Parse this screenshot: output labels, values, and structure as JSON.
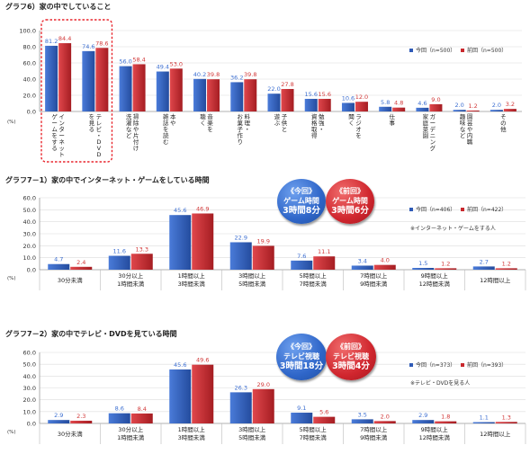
{
  "colors": {
    "current": "#2f5bb7",
    "previous": "#c9282d",
    "label_current": "#3d6fd1",
    "label_previous": "#d23a3a",
    "highlight": "#e8272e"
  },
  "chart_data": [
    {
      "type": "bar",
      "title": "グラフ6）家の中でしていること",
      "ylabel": "(%)",
      "ylim": [
        0,
        100
      ],
      "yticks": [
        "0.0",
        "20.0",
        "40.0",
        "60.0",
        "80.0",
        "100.0"
      ],
      "categories": [
        "インターネット・ゲームをする",
        "テレビ・DVDを見る",
        "掃除や片付け、洗濯など",
        "本や雑誌を読む",
        "音楽を聴く",
        "料理・お菓子作り",
        "子供と遊ぶ",
        "勉強・資格取得",
        "ラジオを聞く",
        "仕事",
        "ガーデニング・家庭菜園",
        "園芸や内職、趣味など",
        "その他"
      ],
      "categories_vertical": [
        "インターネット\nゲームをする",
        "テレビ・DVD\nを見る",
        "掃除や片付け\n洗濯など",
        "本や\n雑誌を読む",
        "音楽を\n聴く",
        "料理・\nお菓子作り",
        "子供と\n遊ぶ",
        "勉強・\n資格取得",
        "ラジオを\n聞く",
        "仕事",
        "ガーデニング\n家庭菜園",
        "園芸や内職\n趣味など",
        "その他"
      ],
      "series": [
        {
          "name": "今回（n=500）",
          "values": [
            81.2,
            74.6,
            56.0,
            49.4,
            40.2,
            36.2,
            22.0,
            15.6,
            10.6,
            5.8,
            4.6,
            2.0,
            2.0
          ]
        },
        {
          "name": "前回（n=500）",
          "values": [
            84.4,
            78.6,
            58.4,
            53.0,
            39.8,
            39.8,
            27.8,
            15.6,
            12.0,
            4.8,
            9.0,
            1.2,
            3.2
          ]
        }
      ],
      "legend": "top-right",
      "highlight_first": 2
    },
    {
      "type": "bar",
      "title": "グラフ7－1）家の中でインターネット・ゲームをしている時間",
      "ylabel": "(%)",
      "ylim": [
        0,
        60
      ],
      "yticks": [
        "0.0",
        "10.0",
        "20.0",
        "30.0",
        "40.0",
        "50.0",
        "60.0"
      ],
      "categories": [
        "30分未満",
        "30分以上\n1時間未満",
        "1時間以上\n3時間未満",
        "3時間以上\n5時間未満",
        "5時間以上\n7時間未満",
        "7時間以上\n9時間未満",
        "9時間以上\n12時間未満",
        "12時間以上"
      ],
      "series": [
        {
          "name": "今回（n=406）",
          "values": [
            4.7,
            11.6,
            45.6,
            22.9,
            7.6,
            3.4,
            1.5,
            2.7
          ]
        },
        {
          "name": "前回（n=422）",
          "values": [
            2.4,
            13.3,
            46.9,
            19.9,
            11.1,
            4.0,
            1.2,
            1.2
          ]
        }
      ],
      "legend": "top-right",
      "note": "※インターネット・ゲームをする人",
      "bubbles": [
        {
          "lines": [
            "《今回》",
            "ゲーム時間"
          ],
          "big": "3時間8分"
        },
        {
          "lines": [
            "《前回》",
            "ゲーム時間"
          ],
          "big": "3時間6分"
        }
      ]
    },
    {
      "type": "bar",
      "title": "グラフ7－2）家の中でテレビ・DVDを見ている時間",
      "ylabel": "(%)",
      "ylim": [
        0,
        60
      ],
      "yticks": [
        "0.0",
        "10.0",
        "20.0",
        "30.0",
        "40.0",
        "50.0",
        "60.0"
      ],
      "categories": [
        "30分未満",
        "30分以上\n1時間未満",
        "1時間以上\n3時間未満",
        "3時間以上\n5時間未満",
        "5時間以上\n7時間未満",
        "7時間以上\n9時間未満",
        "9時間以上\n12時間未満",
        "12時間以上"
      ],
      "series": [
        {
          "name": "今回（n=373）",
          "values": [
            2.9,
            8.6,
            45.6,
            26.3,
            9.1,
            3.5,
            2.9,
            1.1
          ]
        },
        {
          "name": "前回（n=393）",
          "values": [
            2.3,
            8.4,
            49.6,
            29.0,
            5.6,
            2.0,
            1.8,
            1.3
          ]
        }
      ],
      "legend": "top-right",
      "note": "※テレビ・DVDを見る人",
      "bubbles": [
        {
          "lines": [
            "《今回》",
            "テレビ視聴"
          ],
          "big": "3時間18分"
        },
        {
          "lines": [
            "《前回》",
            "テレビ視聴"
          ],
          "big": "3時間4分"
        }
      ]
    }
  ]
}
